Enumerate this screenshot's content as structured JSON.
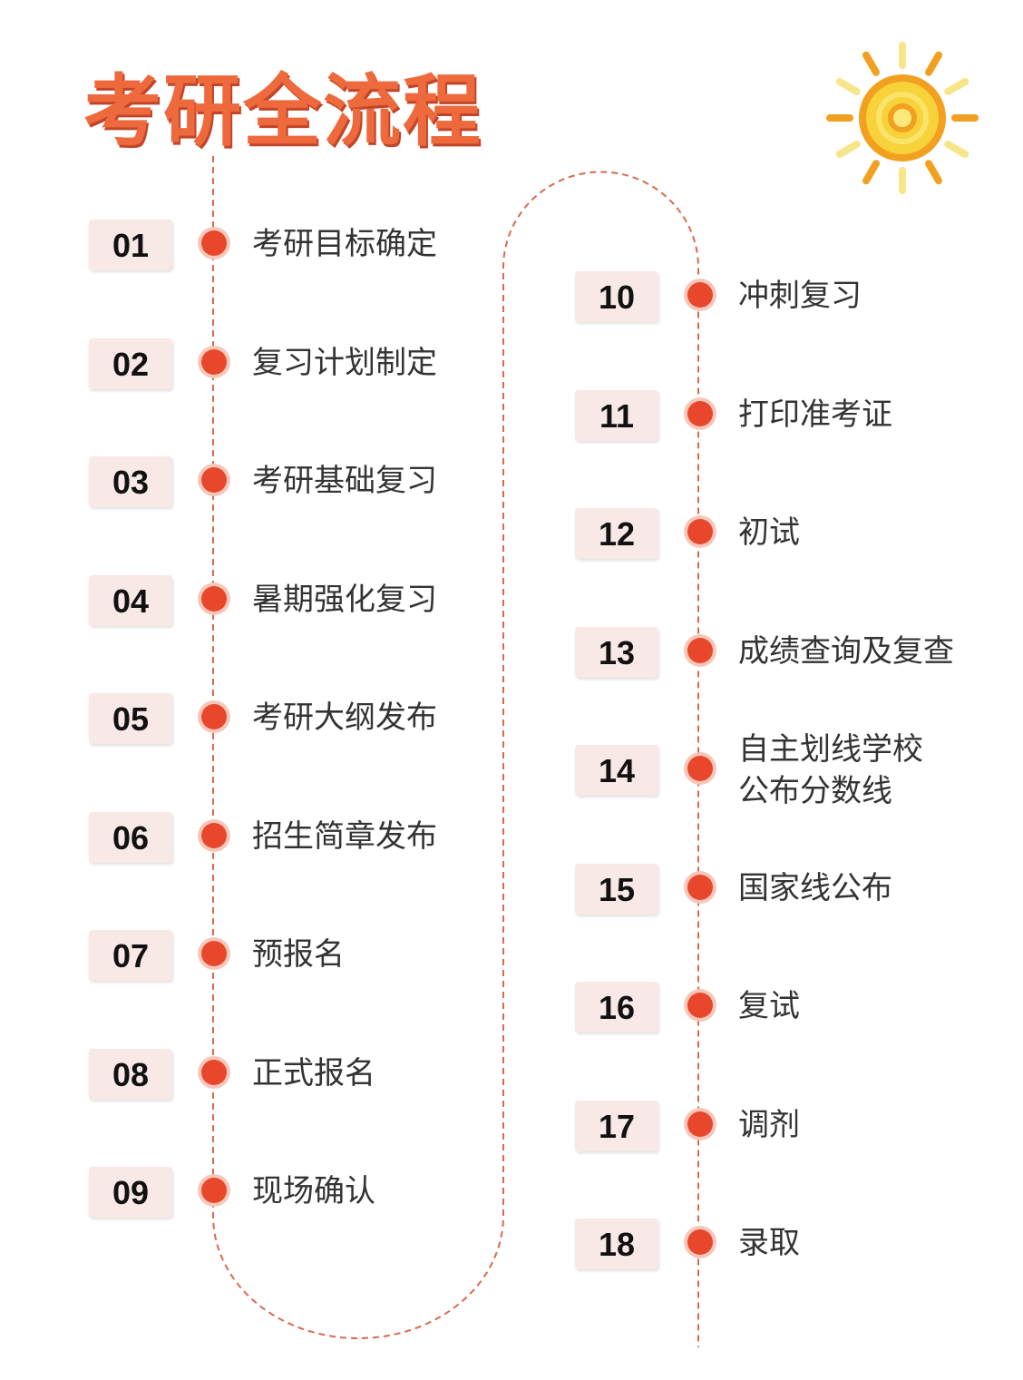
{
  "title": "考研全流程",
  "colors": {
    "accent": "#e8472b",
    "title": "#ee6a3c",
    "badge_bg": "#f8e8e6",
    "sun": "#f2a020"
  },
  "decoration": {
    "icon": "sun-icon"
  },
  "steps": [
    {
      "num": "01",
      "label": "考研目标确定"
    },
    {
      "num": "02",
      "label": "复习计划制定"
    },
    {
      "num": "03",
      "label": "考研基础复习"
    },
    {
      "num": "04",
      "label": "暑期强化复习"
    },
    {
      "num": "05",
      "label": "考研大纲发布"
    },
    {
      "num": "06",
      "label": "招生简章发布"
    },
    {
      "num": "07",
      "label": "预报名"
    },
    {
      "num": "08",
      "label": "正式报名"
    },
    {
      "num": "09",
      "label": "现场确认"
    },
    {
      "num": "10",
      "label": "冲刺复习"
    },
    {
      "num": "11",
      "label": "打印准考证"
    },
    {
      "num": "12",
      "label": "初试"
    },
    {
      "num": "13",
      "label": "成绩查询及复查"
    },
    {
      "num": "14",
      "label": "自主划线学校\n公布分数线"
    },
    {
      "num": "15",
      "label": "国家线公布"
    },
    {
      "num": "16",
      "label": "复试"
    },
    {
      "num": "17",
      "label": "调剂"
    },
    {
      "num": "18",
      "label": "录取"
    }
  ]
}
